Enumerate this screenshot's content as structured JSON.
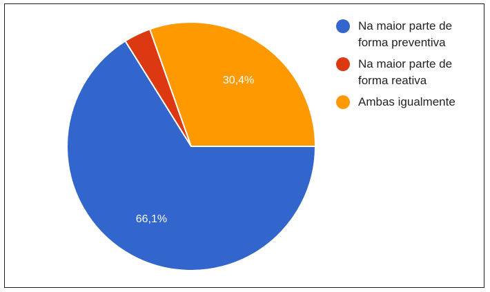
{
  "chart_data": {
    "type": "pie",
    "categories": [
      "Na maior parte de forma preventiva",
      "Na maior parte de forma reativa",
      "Ambas igualmente"
    ],
    "values": [
      66.1,
      3.5,
      30.4
    ],
    "data_labels": [
      "66,1%",
      "",
      "30,4%"
    ],
    "colors": [
      "#3366cc",
      "#dc3912",
      "#ff9900"
    ],
    "legend_position": "right",
    "title": ""
  },
  "legend": {
    "items": [
      {
        "label": "Na maior parte de forma preventiva",
        "color": "#3366cc"
      },
      {
        "label": "Na maior parte de forma reativa",
        "color": "#dc3912"
      },
      {
        "label": "Ambas igualmente",
        "color": "#ff9900"
      }
    ]
  }
}
